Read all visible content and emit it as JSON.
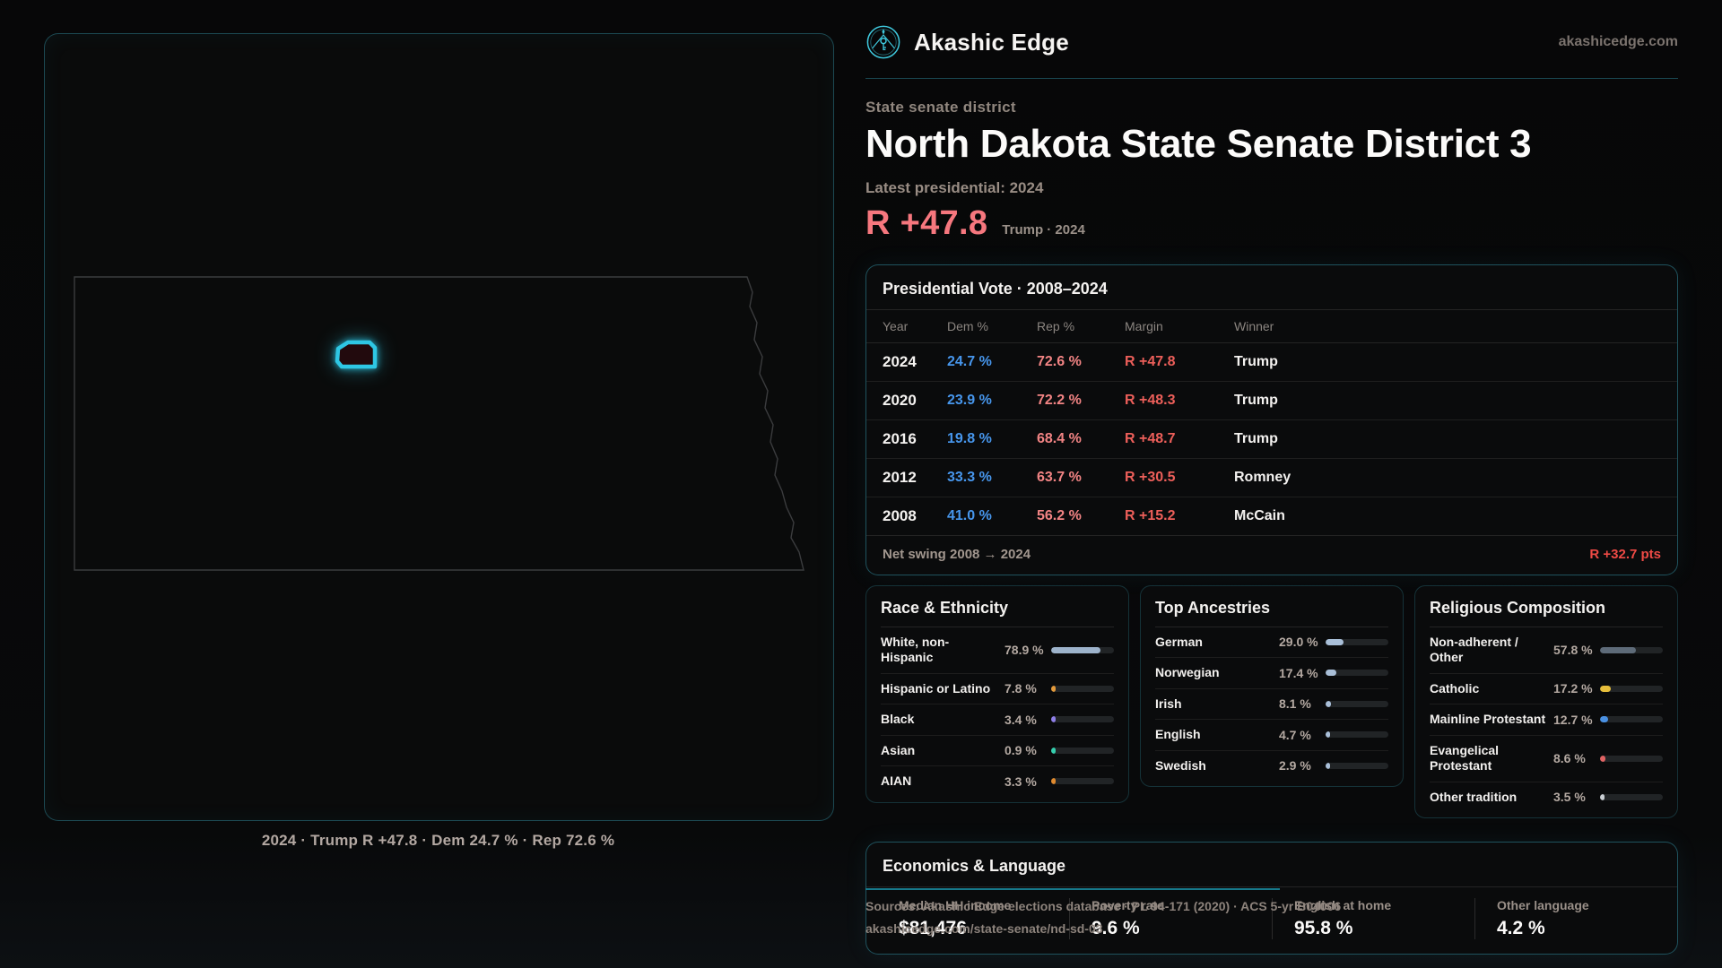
{
  "brand": {
    "name": "Akashic Edge",
    "domain": "akashicedge.com"
  },
  "header": {
    "kicker": "State senate district",
    "title": "North Dakota State Senate District 3",
    "latest": "Latest presidential: 2024",
    "big_margin": "R +47.8",
    "margin_context": "Trump · 2024"
  },
  "map": {
    "caption": "2024 · Trump R +47.8 · Dem 24.7 % · Rep 72.6 %",
    "accent": "#2ec7e4"
  },
  "pres_table": {
    "title": "Presidential Vote · 2008–2024",
    "columns": [
      "Year",
      "Dem %",
      "Rep %",
      "Margin",
      "Winner"
    ],
    "rows": [
      {
        "year": "2024",
        "dem": "24.7 %",
        "rep": "72.6 %",
        "margin": "R +47.8",
        "winner": "Trump"
      },
      {
        "year": "2020",
        "dem": "23.9 %",
        "rep": "72.2 %",
        "margin": "R +48.3",
        "winner": "Trump"
      },
      {
        "year": "2016",
        "dem": "19.8 %",
        "rep": "68.4 %",
        "margin": "R +48.7",
        "winner": "Trump"
      },
      {
        "year": "2012",
        "dem": "33.3 %",
        "rep": "63.7 %",
        "margin": "R +30.5",
        "winner": "Romney"
      },
      {
        "year": "2008",
        "dem": "41.0 %",
        "rep": "56.2 %",
        "margin": "R +15.2",
        "winner": "McCain"
      }
    ],
    "footer_label": "Net swing 2008 → 2024",
    "footer_value": "R +32.7 pts"
  },
  "panels": [
    {
      "title": "Race & Ethnicity",
      "rows": [
        {
          "label": "White, non-Hispanic",
          "value": "78.9 %",
          "pct": 78.9,
          "color": "#9db3cb"
        },
        {
          "label": "Hispanic or Latino",
          "value": "7.8 %",
          "pct": 7.8,
          "color": "#e39a3b"
        },
        {
          "label": "Black",
          "value": "3.4 %",
          "pct": 3.4,
          "color": "#8f7fe8"
        },
        {
          "label": "Asian",
          "value": "0.9 %",
          "pct": 0.9,
          "color": "#35cfae"
        },
        {
          "label": "AIAN",
          "value": "3.3 %",
          "pct": 3.3,
          "color": "#e08a2e"
        }
      ]
    },
    {
      "title": "Top Ancestries",
      "rows": [
        {
          "label": "German",
          "value": "29.0 %",
          "pct": 29.0,
          "color": "#a9bfd8"
        },
        {
          "label": "Norwegian",
          "value": "17.4 %",
          "pct": 17.4,
          "color": "#a9bfd8"
        },
        {
          "label": "Irish",
          "value": "8.1 %",
          "pct": 8.1,
          "color": "#a9bfd8"
        },
        {
          "label": "English",
          "value": "4.7 %",
          "pct": 4.7,
          "color": "#a9bfd8"
        },
        {
          "label": "Swedish",
          "value": "2.9 %",
          "pct": 2.9,
          "color": "#a9bfd8"
        }
      ]
    },
    {
      "title": "Religious Composition",
      "rows": [
        {
          "label": "Non-adherent / Other",
          "value": "57.8 %",
          "pct": 57.8,
          "color": "#5e6b79"
        },
        {
          "label": "Catholic",
          "value": "17.2 %",
          "pct": 17.2,
          "color": "#e6be3b"
        },
        {
          "label": "Mainline Protestant",
          "value": "12.7 %",
          "pct": 12.7,
          "color": "#4a90e2"
        },
        {
          "label": "Evangelical Protestant",
          "value": "8.6 %",
          "pct": 8.6,
          "color": "#e06363"
        },
        {
          "label": "Other tradition",
          "value": "3.5 %",
          "pct": 3.5,
          "color": "#c9ced3"
        }
      ]
    }
  ],
  "economics": {
    "title": "Economics & Language",
    "stats": [
      {
        "label": "Median HH income",
        "value": "$81,476"
      },
      {
        "label": "Poverty rate",
        "value": "9.6 %"
      },
      {
        "label": "English at home",
        "value": "95.8 %"
      },
      {
        "label": "Other language",
        "value": "4.2 %"
      }
    ]
  },
  "sources": {
    "line1": "Sources: Akashic Edge elections database · PL 94-171 (2020) · ACS 5-yr B04006",
    "line2": "akashicedge.com/state-senate/nd-sd-03"
  },
  "colors": {
    "dem": "#4796ec",
    "rep": "#f28484",
    "margin": "#ed5f5a",
    "accent": "#2ec7e4"
  }
}
